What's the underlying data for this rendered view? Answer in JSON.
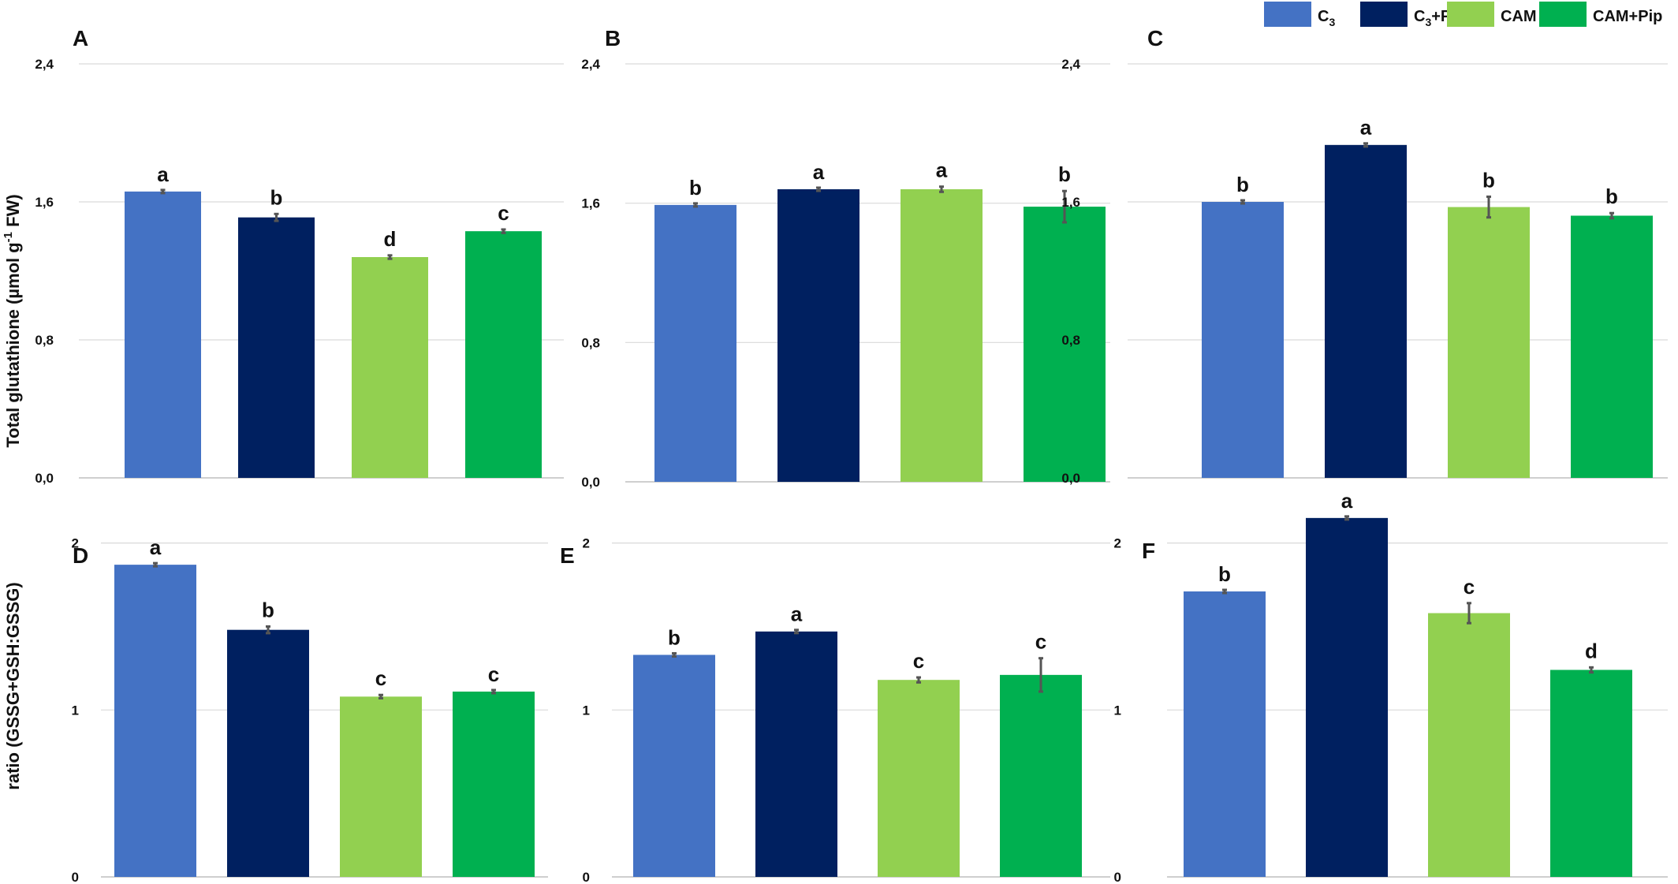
{
  "colors": {
    "c3": "#4472c4",
    "c3pip": "#002060",
    "cam": "#92d050",
    "campip": "#00b050"
  },
  "legend": [
    {
      "key": "c3",
      "base": "C",
      "sub": "3",
      "suffix": ""
    },
    {
      "key": "c3pip",
      "base": "C",
      "sub": "3",
      "suffix": "+Pip"
    },
    {
      "key": "cam",
      "base": "CAM",
      "sub": "",
      "suffix": ""
    },
    {
      "key": "campip",
      "base": "CAM+Pip",
      "sub": "",
      "suffix": ""
    }
  ],
  "ylabels": {
    "top": {
      "pre": "Total glutathione (µmol g",
      "sup": "-1",
      "post": " FW)"
    },
    "bottom": {
      "pre": "ratio (GSSG+GSH:GSSG)",
      "sup": "",
      "post": ""
    }
  },
  "chart_data": [
    {
      "type": "bar",
      "panel": "A",
      "ylim": [
        0,
        2.4
      ],
      "yticks": [
        "0,0",
        "0,8",
        "1,6",
        "2,4"
      ],
      "ytick_values": [
        0,
        0.8,
        1.6,
        2.4
      ],
      "series": [
        {
          "key": "c3",
          "value": 1.66,
          "error": 0.005,
          "sig": "a"
        },
        {
          "key": "c3pip",
          "value": 1.51,
          "error": 0.02,
          "sig": "b"
        },
        {
          "key": "cam",
          "value": 1.28,
          "error": 0.01,
          "sig": "d"
        },
        {
          "key": "campip",
          "value": 1.43,
          "error": 0.01,
          "sig": "c"
        }
      ]
    },
    {
      "type": "bar",
      "panel": "B",
      "ylim": [
        0,
        2.4
      ],
      "yticks": [
        "0,0",
        "0,8",
        "1,6",
        "2,4"
      ],
      "ytick_values": [
        0,
        0.8,
        1.6,
        2.4
      ],
      "series": [
        {
          "key": "c3",
          "value": 1.59,
          "error": 0.005,
          "sig": "b"
        },
        {
          "key": "c3pip",
          "value": 1.68,
          "error": 0.005,
          "sig": "a"
        },
        {
          "key": "cam",
          "value": 1.68,
          "error": 0.015,
          "sig": "a"
        },
        {
          "key": "campip",
          "value": 1.58,
          "error": 0.09,
          "sig": "b"
        }
      ]
    },
    {
      "type": "bar",
      "panel": "C",
      "ylim": [
        0,
        2.4
      ],
      "yticks": [
        "0,0",
        "0,8",
        "1,6",
        "2,4"
      ],
      "ytick_values": [
        0,
        0.8,
        1.6,
        2.4
      ],
      "series": [
        {
          "key": "c3",
          "value": 1.6,
          "error": 0.005,
          "sig": "b"
        },
        {
          "key": "c3pip",
          "value": 1.93,
          "error": 0.005,
          "sig": "a"
        },
        {
          "key": "cam",
          "value": 1.57,
          "error": 0.06,
          "sig": "b"
        },
        {
          "key": "campip",
          "value": 1.52,
          "error": 0.015,
          "sig": "b"
        }
      ]
    },
    {
      "type": "bar",
      "panel": "D",
      "ylim": [
        0,
        2.65
      ],
      "yticks": [
        "0",
        "1",
        "2"
      ],
      "ytick_values": [
        0,
        1,
        2
      ],
      "series": [
        {
          "key": "c3",
          "value": 1.87,
          "error": 0.005,
          "sig": "a"
        },
        {
          "key": "c3pip",
          "value": 1.48,
          "error": 0.02,
          "sig": "b"
        },
        {
          "key": "cam",
          "value": 1.08,
          "error": 0.01,
          "sig": "c"
        },
        {
          "key": "campip",
          "value": 1.11,
          "error": 0.005,
          "sig": "c"
        }
      ]
    },
    {
      "type": "bar",
      "panel": "E",
      "ylim": [
        0,
        2.65
      ],
      "yticks": [
        "0",
        "1",
        "2"
      ],
      "ytick_values": [
        0,
        1,
        2
      ],
      "series": [
        {
          "key": "c3",
          "value": 1.33,
          "error": 0.005,
          "sig": "b"
        },
        {
          "key": "c3pip",
          "value": 1.47,
          "error": 0.005,
          "sig": "a"
        },
        {
          "key": "cam",
          "value": 1.18,
          "error": 0.015,
          "sig": "c"
        },
        {
          "key": "campip",
          "value": 1.21,
          "error": 0.1,
          "sig": "c"
        }
      ]
    },
    {
      "type": "bar",
      "panel": "F",
      "ylim": [
        0,
        2.65
      ],
      "yticks": [
        "0",
        "1",
        "2"
      ],
      "ytick_values": [
        0,
        1,
        2
      ],
      "series": [
        {
          "key": "c3",
          "value": 1.71,
          "error": 0.005,
          "sig": "b"
        },
        {
          "key": "c3pip",
          "value": 2.15,
          "error": 0.005,
          "sig": "a"
        },
        {
          "key": "cam",
          "value": 1.58,
          "error": 0.06,
          "sig": "c"
        },
        {
          "key": "campip",
          "value": 1.24,
          "error": 0.015,
          "sig": "d"
        }
      ]
    }
  ]
}
